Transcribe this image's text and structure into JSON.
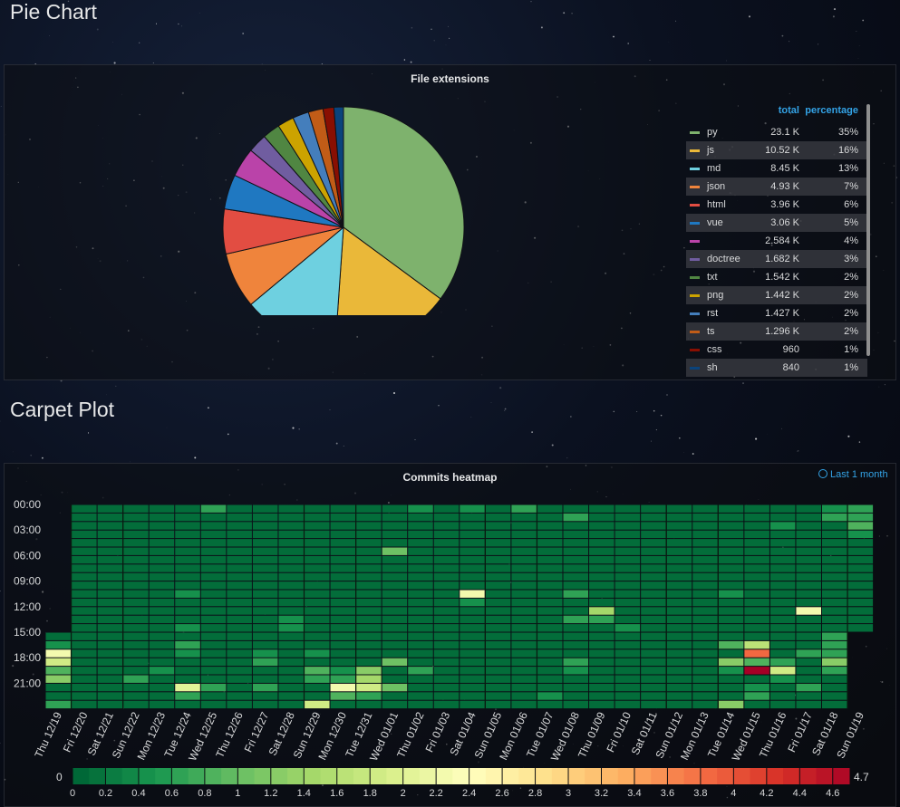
{
  "rows": {
    "pie_title": "Pie Chart",
    "carpet_title": "Carpet Plot"
  },
  "pie_panel": {
    "title": "File extensions",
    "legend_headers": {
      "total": "total",
      "percentage": "percentage"
    }
  },
  "heatmap_panel": {
    "title": "Commits heatmap",
    "time_range": "Last 1 month"
  },
  "colors": {
    "accent": "#33a2e5",
    "panel_border": "#2c3038"
  },
  "chart_data": [
    {
      "type": "pie",
      "title": "File extensions",
      "slices": [
        {
          "name": "py",
          "total": "23.1 K",
          "percentage": "35%",
          "value": 23100,
          "color": "#7eb26d"
        },
        {
          "name": "js",
          "total": "10.52 K",
          "percentage": "16%",
          "value": 10520,
          "color": "#eab839"
        },
        {
          "name": "md",
          "total": "8.45 K",
          "percentage": "13%",
          "value": 8450,
          "color": "#6ed0e0"
        },
        {
          "name": "json",
          "total": "4.93 K",
          "percentage": "7%",
          "value": 4930,
          "color": "#ef843c"
        },
        {
          "name": "html",
          "total": "3.96 K",
          "percentage": "6%",
          "value": 3960,
          "color": "#e24d42"
        },
        {
          "name": "vue",
          "total": "3.06 K",
          "percentage": "5%",
          "value": 3060,
          "color": "#1f78c1"
        },
        {
          "name": "",
          "total": "2.584 K",
          "percentage": "4%",
          "value": 2584,
          "color": "#ba43a9"
        },
        {
          "name": "doctree",
          "total": "1.682 K",
          "percentage": "3%",
          "value": 1682,
          "color": "#705da0"
        },
        {
          "name": "txt",
          "total": "1.542 K",
          "percentage": "2%",
          "value": 1542,
          "color": "#508642"
        },
        {
          "name": "png",
          "total": "1.442 K",
          "percentage": "2%",
          "value": 1442,
          "color": "#cca300"
        },
        {
          "name": "rst",
          "total": "1.427 K",
          "percentage": "2%",
          "value": 1427,
          "color": "#447ebc"
        },
        {
          "name": "ts",
          "total": "1.296 K",
          "percentage": "2%",
          "value": 1296,
          "color": "#c15c17"
        },
        {
          "name": "css",
          "total": "960",
          "percentage": "1%",
          "value": 960,
          "color": "#890f02"
        },
        {
          "name": "sh",
          "total": "840",
          "percentage": "1%",
          "value": 840,
          "color": "#0a437c"
        }
      ]
    },
    {
      "type": "heatmap",
      "title": "Commits heatmap",
      "y_labels": [
        "00:00",
        "03:00",
        "06:00",
        "09:00",
        "12:00",
        "15:00",
        "18:00",
        "21:00"
      ],
      "x_labels": [
        "Thu 12/19",
        "Fri 12/20",
        "Sat 12/21",
        "Sun 12/22",
        "Mon 12/23",
        "Tue 12/24",
        "Wed 12/25",
        "Thu 12/26",
        "Fri 12/27",
        "Sat 12/28",
        "Sun 12/29",
        "Mon 12/30",
        "Tue 12/31",
        "Wed 01/01",
        "Thu 01/02",
        "Fri 01/03",
        "Sat 01/04",
        "Sun 01/05",
        "Mon 01/06",
        "Tue 01/07",
        "Wed 01/08",
        "Thu 01/09",
        "Fri 01/10",
        "Sat 01/11",
        "Sun 01/12",
        "Mon 01/13",
        "Tue 01/14",
        "Wed 01/15",
        "Thu 01/16",
        "Fri 01/17",
        "Sat 01/18",
        "Sun 01/19"
      ],
      "first_column_start_hour": 15,
      "last_column_end_hour": 15,
      "week_separator_columns": [
        1,
        3,
        10,
        12,
        17,
        19,
        24,
        26,
        31
      ],
      "hot_cells": [
        {
          "day": 0,
          "hour": 16,
          "v": 0.4
        },
        {
          "day": 0,
          "hour": 17,
          "v": 2.2
        },
        {
          "day": 0,
          "hour": 18,
          "v": 1.8
        },
        {
          "day": 0,
          "hour": 19,
          "v": 0.8
        },
        {
          "day": 0,
          "hour": 20,
          "v": 1.2
        },
        {
          "day": 0,
          "hour": 23,
          "v": 0.6
        },
        {
          "day": 3,
          "hour": 20,
          "v": 0.6
        },
        {
          "day": 4,
          "hour": 19,
          "v": 0.4
        },
        {
          "day": 5,
          "hour": 10,
          "v": 0.4
        },
        {
          "day": 5,
          "hour": 14,
          "v": 0.4
        },
        {
          "day": 5,
          "hour": 16,
          "v": 0.6
        },
        {
          "day": 5,
          "hour": 17,
          "v": 0.4
        },
        {
          "day": 5,
          "hour": 21,
          "v": 2.0
        },
        {
          "day": 5,
          "hour": 22,
          "v": 0.6
        },
        {
          "day": 6,
          "hour": 0,
          "v": 0.6
        },
        {
          "day": 6,
          "hour": 21,
          "v": 0.6
        },
        {
          "day": 8,
          "hour": 17,
          "v": 0.4
        },
        {
          "day": 8,
          "hour": 18,
          "v": 0.6
        },
        {
          "day": 8,
          "hour": 21,
          "v": 0.6
        },
        {
          "day": 9,
          "hour": 13,
          "v": 0.4
        },
        {
          "day": 9,
          "hour": 14,
          "v": 0.4
        },
        {
          "day": 10,
          "hour": 17,
          "v": 0.4
        },
        {
          "day": 10,
          "hour": 19,
          "v": 0.8
        },
        {
          "day": 10,
          "hour": 20,
          "v": 0.6
        },
        {
          "day": 10,
          "hour": 23,
          "v": 1.8
        },
        {
          "day": 11,
          "hour": 19,
          "v": 0.4
        },
        {
          "day": 11,
          "hour": 20,
          "v": 0.6
        },
        {
          "day": 11,
          "hour": 21,
          "v": 2.2
        },
        {
          "day": 11,
          "hour": 22,
          "v": 0.8
        },
        {
          "day": 12,
          "hour": 19,
          "v": 1.2
        },
        {
          "day": 12,
          "hour": 20,
          "v": 1.4
        },
        {
          "day": 12,
          "hour": 21,
          "v": 1.8
        },
        {
          "day": 12,
          "hour": 22,
          "v": 0.6
        },
        {
          "day": 13,
          "hour": 5,
          "v": 1.0
        },
        {
          "day": 13,
          "hour": 18,
          "v": 1.0
        },
        {
          "day": 13,
          "hour": 21,
          "v": 1.0
        },
        {
          "day": 14,
          "hour": 0,
          "v": 0.4
        },
        {
          "day": 14,
          "hour": 19,
          "v": 0.6
        },
        {
          "day": 16,
          "hour": 0,
          "v": 0.4
        },
        {
          "day": 16,
          "hour": 10,
          "v": 2.2
        },
        {
          "day": 16,
          "hour": 11,
          "v": 0.4
        },
        {
          "day": 18,
          "hour": 0,
          "v": 0.6
        },
        {
          "day": 19,
          "hour": 22,
          "v": 0.4
        },
        {
          "day": 20,
          "hour": 1,
          "v": 0.6
        },
        {
          "day": 20,
          "hour": 10,
          "v": 0.6
        },
        {
          "day": 20,
          "hour": 13,
          "v": 0.6
        },
        {
          "day": 20,
          "hour": 18,
          "v": 0.6
        },
        {
          "day": 20,
          "hour": 19,
          "v": 0.4
        },
        {
          "day": 21,
          "hour": 12,
          "v": 1.4
        },
        {
          "day": 21,
          "hour": 13,
          "v": 0.6
        },
        {
          "day": 22,
          "hour": 14,
          "v": 0.4
        },
        {
          "day": 26,
          "hour": 10,
          "v": 0.4
        },
        {
          "day": 26,
          "hour": 16,
          "v": 0.8
        },
        {
          "day": 26,
          "hour": 18,
          "v": 1.2
        },
        {
          "day": 26,
          "hour": 19,
          "v": 0.4
        },
        {
          "day": 26,
          "hour": 23,
          "v": 1.2
        },
        {
          "day": 27,
          "hour": 16,
          "v": 1.6
        },
        {
          "day": 27,
          "hour": 17,
          "v": 3.8
        },
        {
          "day": 27,
          "hour": 18,
          "v": 0.8
        },
        {
          "day": 27,
          "hour": 19,
          "v": 4.7
        },
        {
          "day": 27,
          "hour": 21,
          "v": 0.4
        },
        {
          "day": 27,
          "hour": 22,
          "v": 0.6
        },
        {
          "day": 28,
          "hour": 2,
          "v": 0.4
        },
        {
          "day": 28,
          "hour": 18,
          "v": 0.6
        },
        {
          "day": 28,
          "hour": 19,
          "v": 1.8
        },
        {
          "day": 28,
          "hour": 20,
          "v": 0.4
        },
        {
          "day": 29,
          "hour": 12,
          "v": 2.2
        },
        {
          "day": 29,
          "hour": 17,
          "v": 0.6
        },
        {
          "day": 29,
          "hour": 21,
          "v": 0.6
        },
        {
          "day": 30,
          "hour": 0,
          "v": 0.4
        },
        {
          "day": 30,
          "hour": 1,
          "v": 0.6
        },
        {
          "day": 30,
          "hour": 15,
          "v": 0.6
        },
        {
          "day": 30,
          "hour": 16,
          "v": 0.6
        },
        {
          "day": 30,
          "hour": 17,
          "v": 0.6
        },
        {
          "day": 30,
          "hour": 18,
          "v": 1.2
        },
        {
          "day": 30,
          "hour": 19,
          "v": 0.6
        },
        {
          "day": 31,
          "hour": 0,
          "v": 0.6
        },
        {
          "day": 31,
          "hour": 1,
          "v": 0.6
        },
        {
          "day": 31,
          "hour": 2,
          "v": 0.8
        },
        {
          "day": 31,
          "hour": 3,
          "v": 0.4
        }
      ],
      "color_scale": {
        "min": 0,
        "max": 4.7,
        "min_label": "0",
        "max_label": "4.7",
        "ticks": [
          "0",
          "0.2",
          "0.4",
          "0.6",
          "0.8",
          "1",
          "1.2",
          "1.4",
          "1.6",
          "1.8",
          "2",
          "2.2",
          "2.4",
          "2.6",
          "2.8",
          "3",
          "3.2",
          "3.4",
          "3.6",
          "3.8",
          "4",
          "4.2",
          "4.4",
          "4.6"
        ]
      }
    }
  ]
}
